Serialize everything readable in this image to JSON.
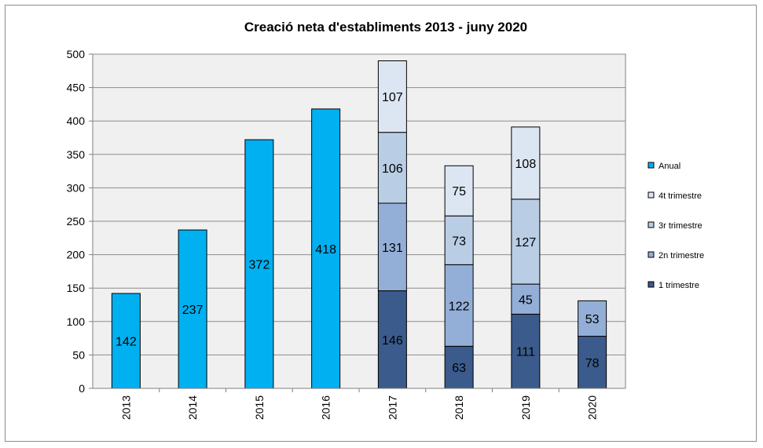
{
  "chart_data": {
    "type": "bar",
    "stacked": true,
    "title": "Creació neta d'establiments 2013 - juny 2020",
    "xlabel": "",
    "ylabel": "",
    "ylim": [
      0,
      500
    ],
    "yticks": [
      0,
      50,
      100,
      150,
      200,
      250,
      300,
      350,
      400,
      450,
      500
    ],
    "grid": true,
    "legend_position": "right",
    "categories": [
      "2013",
      "2014",
      "2015",
      "2016",
      "2017",
      "2018",
      "2019",
      "2020"
    ],
    "series": [
      {
        "name": "Anual",
        "color": "#00b0f0",
        "values": [
          142,
          237,
          372,
          418,
          null,
          null,
          null,
          null
        ]
      },
      {
        "name": "1 trimestre",
        "color": "#3a5b8c",
        "values": [
          null,
          null,
          null,
          null,
          146,
          63,
          111,
          78
        ]
      },
      {
        "name": "2n trimestre",
        "color": "#93afd7",
        "values": [
          null,
          null,
          null,
          null,
          131,
          122,
          45,
          53
        ]
      },
      {
        "name": "3r trimestre",
        "color": "#b9cde5",
        "values": [
          null,
          null,
          null,
          null,
          106,
          73,
          127,
          null
        ]
      },
      {
        "name": "4t trimestre",
        "color": "#dce6f2",
        "values": [
          null,
          null,
          null,
          null,
          107,
          75,
          108,
          null
        ]
      }
    ],
    "legend_order": [
      "Anual",
      "4t trimestre",
      "3r trimestre",
      "2n trimestre",
      "1 trimestre"
    ]
  }
}
